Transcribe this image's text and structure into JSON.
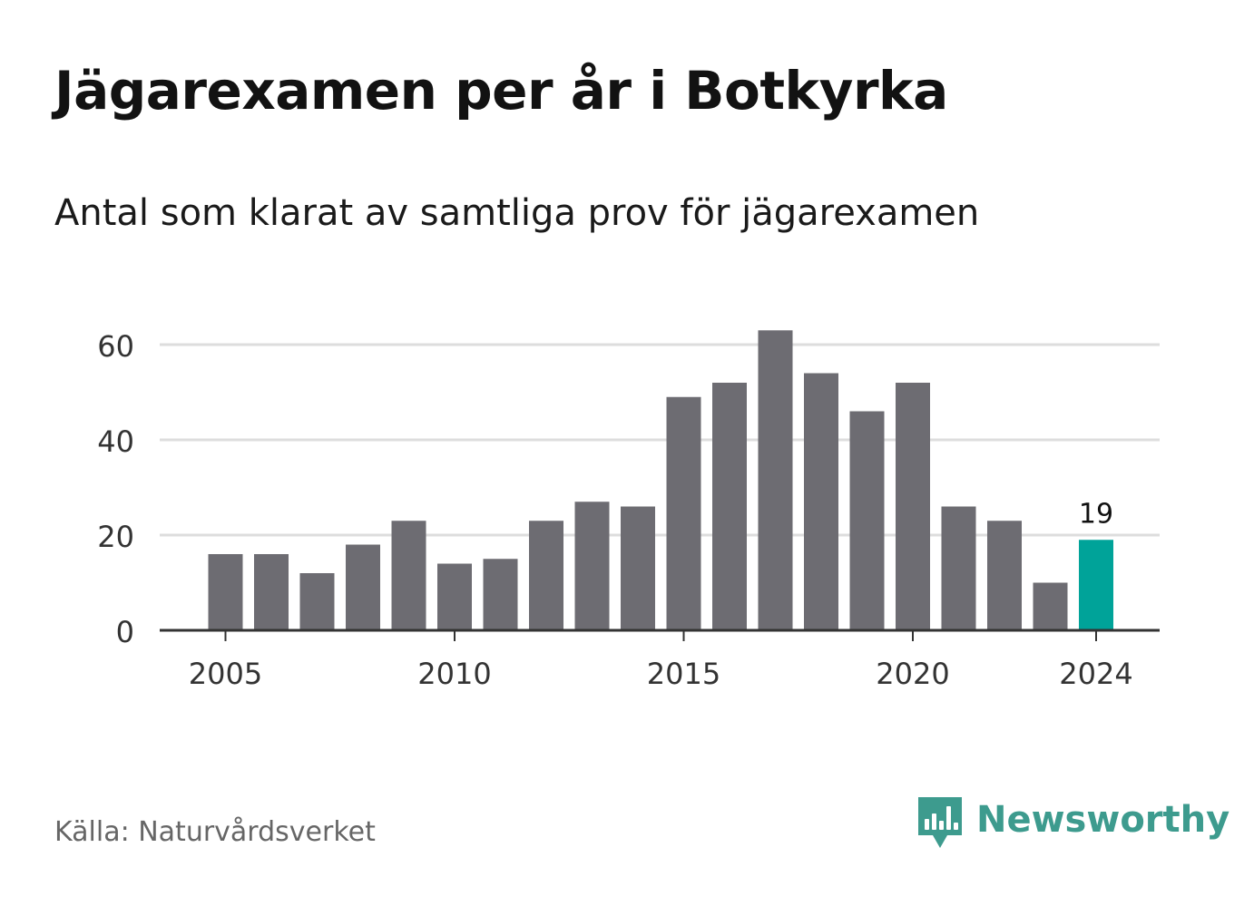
{
  "title": "Jägarexamen per år i Botkyrka",
  "subtitle": "Antal som klarat av samtliga prov för jägarexamen",
  "source": "Källa: Naturvårdsverket",
  "brand": {
    "name": "Newsworthy",
    "icon": "newsworthy-logo-icon",
    "color": "#3d9b8e"
  },
  "colors": {
    "bar": "#6d6c72",
    "highlight": "#00a399",
    "grid": "#dddddd",
    "axis": "#333333",
    "tick_text": "#333333"
  },
  "chart_data": {
    "type": "bar",
    "x": [
      2005,
      2006,
      2007,
      2008,
      2009,
      2010,
      2011,
      2012,
      2013,
      2014,
      2015,
      2016,
      2017,
      2018,
      2019,
      2020,
      2021,
      2022,
      2023,
      2024
    ],
    "values": [
      16,
      16,
      12,
      18,
      23,
      14,
      15,
      23,
      27,
      26,
      49,
      52,
      63,
      54,
      46,
      52,
      26,
      23,
      10,
      19
    ],
    "highlight_x": 2024,
    "annotation": {
      "x": 2024,
      "text": "19"
    },
    "x_ticks": [
      "2005",
      "2010",
      "2015",
      "2020",
      "2024"
    ],
    "y_ticks": [
      "0",
      "20",
      "40",
      "60"
    ],
    "ylim": [
      0,
      60
    ],
    "xlabel": "",
    "ylabel": "",
    "grid": true,
    "legend": "none"
  }
}
